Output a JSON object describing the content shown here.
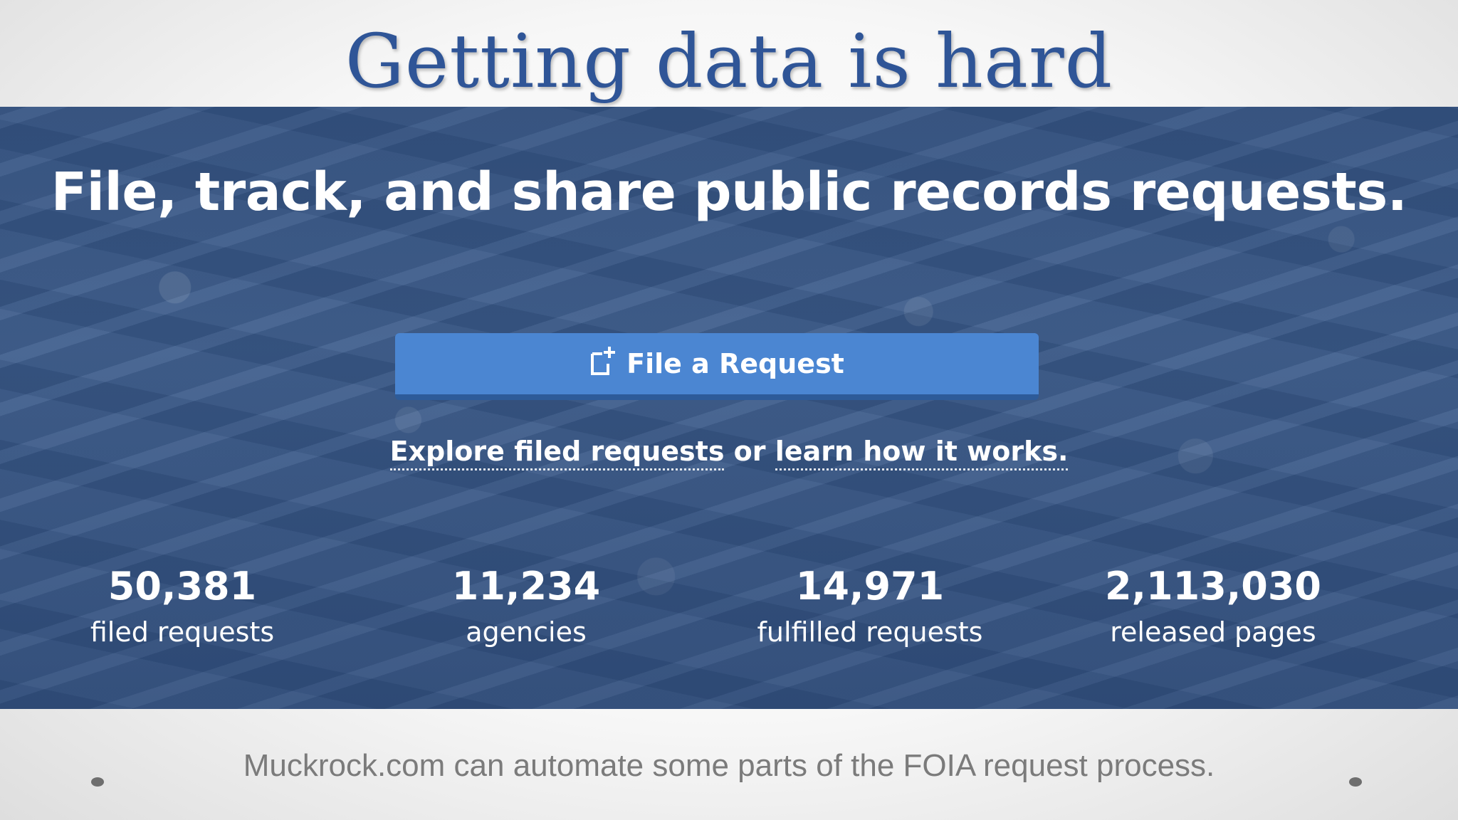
{
  "slide": {
    "title": "Getting data is hard",
    "caption": "Muckrock.com can automate some parts of the FOIA request process."
  },
  "hero": {
    "heading": "File, track, and share public records requests.",
    "file_request_label": "File a Request",
    "explore_link": "Explore filed requests",
    "or_text": " or ",
    "learn_link": "learn how it works."
  },
  "stats": [
    {
      "value": "50,381",
      "label": "filed requests"
    },
    {
      "value": "11,234",
      "label": "agencies"
    },
    {
      "value": "14,971",
      "label": "fulfilled requests"
    },
    {
      "value": "2,113,030",
      "label": "released pages"
    }
  ],
  "colors": {
    "title": "#2f5597",
    "button": "#4b86d2",
    "hero_background": "#3d5e8f",
    "caption": "#7b7b7b"
  },
  "icons": {
    "file_request": "new-document-icon"
  }
}
